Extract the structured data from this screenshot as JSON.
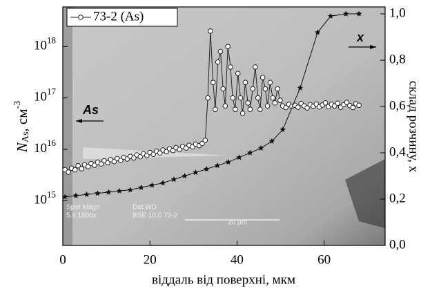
{
  "chart_data": {
    "type": "line",
    "xlabel": "віддаль від поверхні, мкм",
    "ylabel": {
      "main": "N",
      "sub": "As",
      "rest": ", см",
      "sup": "-3"
    },
    "y2label": "склад розчину, x",
    "xlim": [
      0,
      74
    ],
    "xticks": [
      0,
      20,
      40,
      60
    ],
    "ylim": [
      135000000000000.0,
      5.9e+18
    ],
    "log_y": true,
    "yticks": [
      {
        "value": 1000000000000000.0,
        "label": "10",
        "exponent": "15"
      },
      {
        "value": 1e+16,
        "label": "10",
        "exponent": "16"
      },
      {
        "value": 1e+17,
        "label": "10",
        "exponent": "17"
      },
      {
        "value": 1e+18,
        "label": "10",
        "exponent": "18"
      }
    ],
    "y2lim": [
      0,
      1.03
    ],
    "y2ticks": [
      {
        "value": 0,
        "label": "0,0"
      },
      {
        "value": 0.2,
        "label": "0,2"
      },
      {
        "value": 0.4,
        "label": "0,4"
      },
      {
        "value": 0.6,
        "label": "0,6"
      },
      {
        "value": 0.8,
        "label": "0,8"
      },
      {
        "value": 1,
        "label": "1,0"
      }
    ],
    "legend": "upper left",
    "series": [
      {
        "name": "73-2 (As)",
        "color": "#222222",
        "marker": "circle",
        "axis": "y",
        "x": [
          0.5,
          1.3,
          2,
          2.8,
          3.5,
          4.3,
          5,
          5.8,
          6.5,
          7.3,
          8,
          8.8,
          9.5,
          10.3,
          11,
          11.8,
          12.5,
          13.3,
          14,
          14.8,
          15.5,
          16.3,
          17,
          17.8,
          18.5,
          19.3,
          20,
          20.8,
          21.5,
          22.3,
          23,
          23.8,
          24.5,
          25.3,
          26,
          26.8,
          27.5,
          28.3,
          29,
          29.8,
          30.5,
          31.3,
          32,
          32.7,
          33.3,
          33.9,
          34.5,
          35,
          35.6,
          36.2,
          36.8,
          37.3,
          37.9,
          38.5,
          39,
          39.6,
          40.2,
          40.8,
          41.3,
          41.9,
          42.5,
          43,
          43.6,
          44.2,
          44.8,
          45.3,
          45.9,
          46.5,
          47,
          47.6,
          48.2,
          48.7,
          49.3,
          49.9,
          50.5,
          51.2,
          51.9,
          52.6,
          53.3,
          54,
          54.7,
          55.4,
          56.1,
          56.8,
          57.5,
          58.2,
          58.9,
          59.6,
          60.3,
          61,
          61.7,
          62.4,
          63.1,
          63.8,
          64.5,
          65.2,
          65.9,
          66.6,
          67.3,
          68
        ],
        "values": [
          4000000000000000.0,
          3600000000000000.0,
          4300000000000000.0,
          4000000000000000.0,
          4800000000000000.0,
          4200000000000000.0,
          5000000000000000.0,
          4600000000000000.0,
          5300000000000000.0,
          4900000000000000.0,
          5600000000000000.0,
          5200000000000000.0,
          6000000000000000.0,
          5500000000000000.0,
          6300000000000000.0,
          5800000000000000.0,
          6600000000000000.0,
          6100000000000000.0,
          7000000000000000.0,
          6500000000000000.0,
          7300000000000000.0,
          6800000000000000.0,
          7800000000000000.0,
          7200000000000000.0,
          8200000000000000.0,
          7600000000000000.0,
          8700000000000000.0,
          8000000000000000.0,
          9200000000000000.0,
          8500000000000000.0,
          9700000000000000.0,
          9000000000000000.0,
          1.03e+16,
          9500000000000000.0,
          1.08e+16,
          1e+16,
          1.14e+16,
          1.06e+16,
          1.2e+16,
          1.12e+16,
          1.26e+16,
          1.18e+16,
          1.3e+16,
          1.5e+16,
          1e+17,
          2e+18,
          2e+17,
          6e+16,
          5e+17,
          8e+17,
          1.5e+17,
          7e+16,
          1e+18,
          4e+17,
          1e+17,
          6e+16,
          3e+17,
          1e+17,
          5e+16,
          2e+17,
          8e+16,
          6e+16,
          1.5e+17,
          4e+17,
          1e+17,
          6e+16,
          2.5e+17,
          1.5e+17,
          7e+16,
          2e+17,
          1e+17,
          8e+16,
          1.5e+17,
          9e+16,
          7e+16,
          6.5e+16,
          7.5e+16,
          6.8e+16,
          7.2e+16,
          6.6e+16,
          7.8e+16,
          7e+16,
          6.4e+16,
          7.4e+16,
          6.9e+16,
          7.6e+16,
          6.7e+16,
          7.3e+16,
          8e+16,
          6.8e+16,
          7.5e+16,
          7e+16,
          7.9e+16,
          6.6e+16,
          7.4e+16,
          8.2e+16,
          7.1e+16,
          6.5e+16,
          7.7e+16,
          7.2e+16
        ]
      },
      {
        "color": "#111111",
        "marker": "star",
        "axis": "y2",
        "x": [
          0.5,
          3,
          5.5,
          8,
          10.5,
          13,
          15.5,
          18,
          20.5,
          23,
          25.5,
          28,
          30.5,
          33,
          35.5,
          38,
          40.5,
          43,
          45.5,
          48,
          50.5,
          54.5,
          58.5,
          61.5,
          65,
          68
        ],
        "values": [
          0.21,
          0.215,
          0.22,
          0.225,
          0.23,
          0.235,
          0.24,
          0.25,
          0.26,
          0.27,
          0.285,
          0.3,
          0.315,
          0.33,
          0.345,
          0.36,
          0.38,
          0.4,
          0.42,
          0.45,
          0.5,
          0.68,
          0.92,
          0.99,
          1.0,
          1.0
        ]
      }
    ],
    "annotations": [
      "As",
      "x"
    ],
    "image_labels": [
      "Spot Magn",
      "5.8   1500x",
      "Det  WD",
      "BSE 10.0  73-2",
      "20 µm"
    ]
  }
}
